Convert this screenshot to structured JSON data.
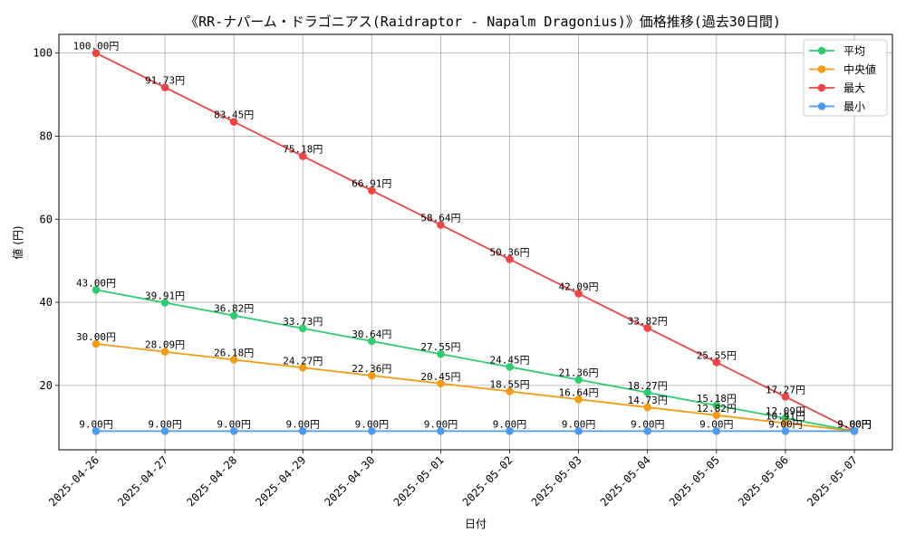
{
  "chart_data": {
    "type": "line",
    "title": "《RR-ナパーム・ドラゴニアス(Raidraptor - Napalm Dragonius)》価格推移(過去30日間)",
    "xlabel": "日付",
    "ylabel": "値 (円)",
    "categories": [
      "2025-04-26",
      "2025-04-27",
      "2025-04-28",
      "2025-04-29",
      "2025-04-30",
      "2025-05-01",
      "2025-05-02",
      "2025-05-03",
      "2025-05-04",
      "2025-05-05",
      "2025-05-06",
      "2025-05-07"
    ],
    "ylim": [
      4.5,
      104.5
    ],
    "yticks": [
      20,
      40,
      60,
      80,
      100
    ],
    "grid": true,
    "legend_position": "top-right",
    "value_suffix": "円",
    "series": [
      {
        "name": "平均",
        "color": "#2ecc71",
        "values": [
          43.0,
          39.91,
          36.82,
          33.73,
          30.64,
          27.55,
          24.45,
          21.36,
          18.27,
          15.18,
          12.09,
          9.0
        ]
      },
      {
        "name": "中央値",
        "color": "#f39c12",
        "values": [
          30.0,
          28.09,
          26.18,
          24.27,
          22.36,
          20.45,
          18.55,
          16.64,
          14.73,
          12.82,
          10.91,
          9.0
        ]
      },
      {
        "name": "最大",
        "color": "#f04444",
        "values": [
          100.0,
          91.73,
          83.45,
          75.18,
          66.91,
          58.64,
          50.36,
          42.09,
          33.82,
          25.55,
          17.27,
          9.0
        ]
      },
      {
        "name": "最小",
        "color": "#4c9bf0",
        "values": [
          9.0,
          9.0,
          9.0,
          9.0,
          9.0,
          9.0,
          9.0,
          9.0,
          9.0,
          9.0,
          9.0,
          9.0
        ]
      }
    ]
  }
}
